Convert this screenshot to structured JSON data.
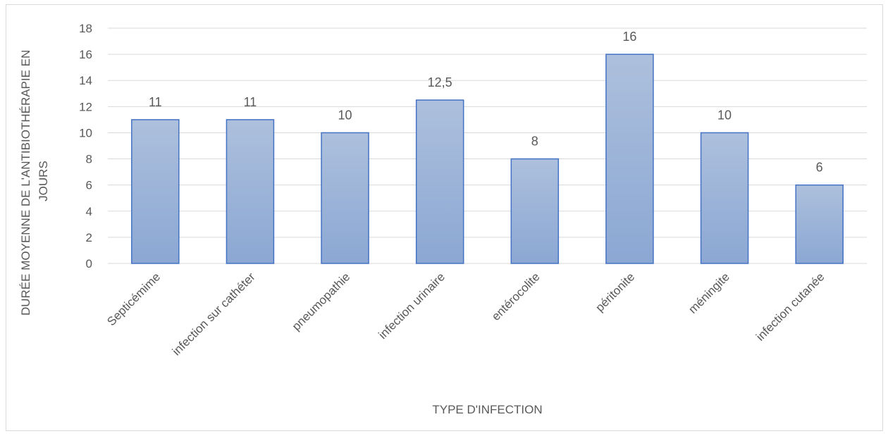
{
  "chart_data": {
    "type": "bar",
    "title": "",
    "xlabel": "TYPE D'INFECTION",
    "ylabel_lines": [
      "DURÉE MOYENNE DE L'ANTIBIOTHÉRAPIE EN",
      "JOURS"
    ],
    "categories": [
      "Septicémime",
      "infection sur cathéter",
      "pneumopathie",
      "infection urinaire",
      "entérocolite",
      "péritonite",
      "méningite",
      "infection cutanée"
    ],
    "values": [
      11,
      11,
      10,
      12.5,
      8,
      16,
      10,
      6
    ],
    "value_labels": [
      "11",
      "11",
      "10",
      "12,5",
      "8",
      "16",
      "10",
      "6"
    ],
    "ylim": [
      0,
      18
    ],
    "yticks": [
      0,
      2,
      4,
      6,
      8,
      10,
      12,
      14,
      16,
      18
    ],
    "grid": true,
    "legend": "none",
    "colors": {
      "bar_top": "#adc0dd",
      "bar_bottom": "#8ba7d3",
      "bar_border": "#4472c4",
      "grid": "#d9d9d9",
      "text": "#595959"
    }
  }
}
